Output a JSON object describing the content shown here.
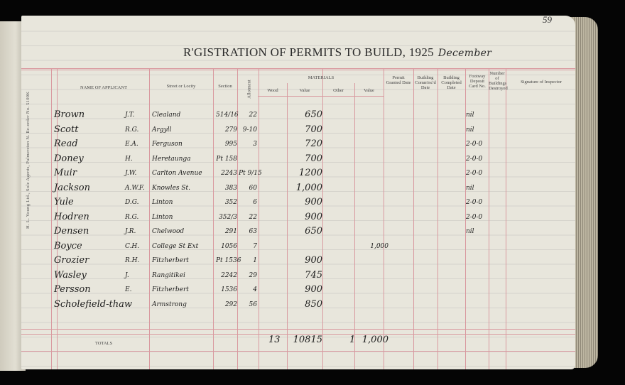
{
  "page_number": "59",
  "side_imprint": "H. L. Young Ltd., Sole Agents, Palmerston N.   Re-order No. 5109K",
  "title": "R'GISTRATION OF PERMITS TO BUILD, 1925",
  "month": "December",
  "headers": {
    "name": "NAME OF APPLICANT",
    "street": "Street or Locity",
    "section": "Section",
    "allotment": "Allotment",
    "materials": "MATERIALS",
    "wood": "Wood",
    "value1": "Value",
    "other": "Other",
    "value2": "Value",
    "permit": "Permit Granted Date",
    "commenced": "Building Comm'nc'd Date",
    "completed": "Building Completed Date",
    "footway": "Footway Deposit Card No.",
    "number": "Number of Buildings Destroyed",
    "signature": "Signature of Inspector"
  },
  "rows": [
    {
      "name": "Brown",
      "initials": "J.T.",
      "street": "Clealand",
      "section": "514/16",
      "allotment": "22",
      "value": "650",
      "other_value": "",
      "footway": "nil"
    },
    {
      "name": "Scott",
      "initials": "R.G.",
      "street": "Argyll",
      "section": "279",
      "allotment": "9-10",
      "value": "700",
      "other_value": "",
      "footway": "nil"
    },
    {
      "name": "Read",
      "initials": "E.A.",
      "street": "Ferguson",
      "section": "995",
      "allotment": "3",
      "value": "720",
      "other_value": "",
      "footway": "2-0-0"
    },
    {
      "name": "Doney",
      "initials": "H.",
      "street": "Heretaunga",
      "section": "Pt 158",
      "allotment": "",
      "value": "700",
      "other_value": "",
      "footway": "2-0-0"
    },
    {
      "name": "Muir",
      "initials": "J.W.",
      "street": "Carlton Avenue",
      "section": "2243",
      "allotment": "Pt 9/15",
      "value": "1200",
      "other_value": "",
      "footway": "2-0-0"
    },
    {
      "name": "Jackson",
      "initials": "A.W.F.",
      "street": "Knowles St.",
      "section": "383",
      "allotment": "60",
      "value": "1,000",
      "other_value": "",
      "footway": "nil"
    },
    {
      "name": "Yule",
      "initials": "D.G.",
      "street": "Linton",
      "section": "352",
      "allotment": "6",
      "value": "900",
      "other_value": "",
      "footway": "2-0-0"
    },
    {
      "name": "Hodren",
      "initials": "R.G.",
      "street": "Linton",
      "section": "352/3",
      "allotment": "22",
      "value": "900",
      "other_value": "",
      "footway": "2-0-0"
    },
    {
      "name": "Densen",
      "initials": "J.R.",
      "street": "Chelwood",
      "section": "291",
      "allotment": "63",
      "value": "650",
      "other_value": "",
      "footway": "nil"
    },
    {
      "name": "Boyce",
      "initials": "C.H.",
      "street": "College St Ext",
      "section": "1056",
      "allotment": "7",
      "value": "",
      "other_value": "1,000",
      "footway": ""
    },
    {
      "name": "Grozier",
      "initials": "R.H.",
      "street": "Fitzherbert",
      "section": "Pt 1536",
      "allotment": "1",
      "value": "900",
      "other_value": "",
      "footway": ""
    },
    {
      "name": "Wasley",
      "initials": "J.",
      "street": "Rangitikei",
      "section": "2242",
      "allotment": "29",
      "value": "745",
      "other_value": "",
      "footway": ""
    },
    {
      "name": "Persson",
      "initials": "E.",
      "street": "Fitzherbert",
      "section": "1536",
      "allotment": "4",
      "value": "900",
      "other_value": "",
      "footway": ""
    },
    {
      "name": "Scholefield-thaw",
      "initials": "",
      "street": "Armstrong",
      "section": "292",
      "allotment": "56",
      "value": "850",
      "other_value": "",
      "footway": ""
    }
  ],
  "totals": {
    "label": "TOTALS",
    "wood_count": "13",
    "value": "10815",
    "other_count": "1",
    "other_value": "1,000"
  }
}
